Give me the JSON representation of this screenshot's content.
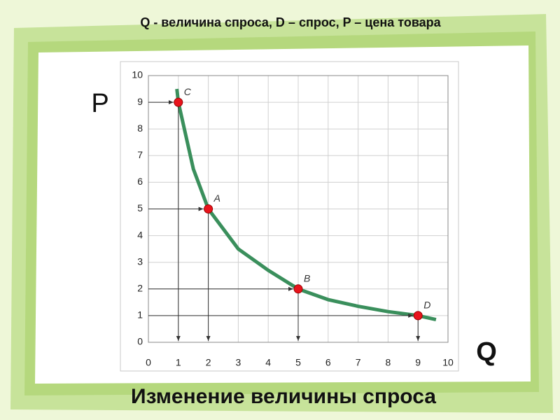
{
  "chart_data": {
    "type": "line",
    "title": "Q  - величина спроса,  D – спрос,  P – цена товара",
    "x_label": "Q",
    "y_label": "P",
    "caption": "Изменение величины спроса",
    "xlim": [
      0,
      10
    ],
    "ylim": [
      0,
      10
    ],
    "xticks": [
      0,
      1,
      2,
      3,
      4,
      5,
      6,
      7,
      8,
      9,
      10
    ],
    "yticks": [
      0,
      1,
      2,
      3,
      4,
      5,
      6,
      7,
      8,
      9,
      10
    ],
    "grid": true,
    "series": [
      {
        "color": "#3a8f5c",
        "x": [
          0.95,
          1,
          1.5,
          2,
          3,
          4,
          5,
          6,
          7,
          8,
          9,
          9.6
        ],
        "values": [
          9.5,
          9,
          6.5,
          5,
          3.5,
          2.7,
          2,
          1.6,
          1.35,
          1.15,
          1,
          0.85
        ]
      }
    ],
    "points": {
      "color": "#e8141c",
      "labels": [
        "C",
        "A",
        "B",
        "D"
      ],
      "x": [
        1,
        2,
        5,
        9
      ],
      "values": [
        9,
        5,
        2,
        1
      ]
    }
  }
}
